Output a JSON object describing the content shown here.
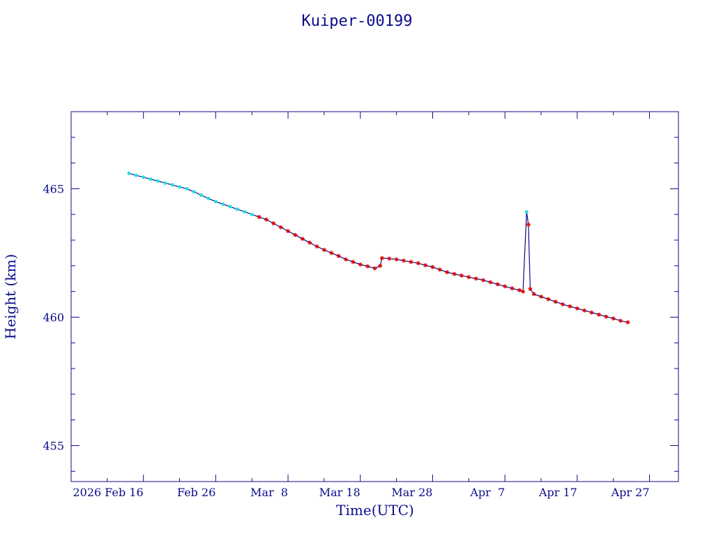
{
  "chart_data": {
    "type": "line",
    "title": "Kuiper-00199",
    "xlabel": "Time(UTC)",
    "ylabel": "Height (km)",
    "x_unit": "date (UTC)",
    "xlim": [
      "2026-02-06",
      "2026-05-01"
    ],
    "ylim": [
      453.6,
      468.0
    ],
    "x_tick_labels": [
      {
        "date": "2026-02-16",
        "label": "2026 Feb 16"
      },
      {
        "date": "2026-02-26",
        "label": "Feb 26"
      },
      {
        "date": "2026-03-08",
        "label": "Mar  8"
      },
      {
        "date": "2026-03-18",
        "label": "Mar 18"
      },
      {
        "date": "2026-03-28",
        "label": "Mar 28"
      },
      {
        "date": "2026-04-07",
        "label": "Apr  7"
      },
      {
        "date": "2026-04-17",
        "label": "Apr 17"
      },
      {
        "date": "2026-04-27",
        "label": "Apr 27"
      }
    ],
    "y_ticks": [
      455,
      460,
      465
    ],
    "grid": false,
    "legend": "none",
    "colors": {
      "axis": "#0b0b8a",
      "line": "#0b0b8a",
      "marker": "#dd0000",
      "highlight": "#22dddd"
    },
    "series": [
      {
        "marker": "red-star",
        "points": [
          {
            "t": "2026-02-14",
            "y": 465.6
          },
          {
            "t": "2026-02-15",
            "y": 465.52
          },
          {
            "t": "2026-02-16",
            "y": 465.45
          },
          {
            "t": "2026-02-17",
            "y": 465.37
          },
          {
            "t": "2026-02-18",
            "y": 465.3
          },
          {
            "t": "2026-02-19",
            "y": 465.22
          },
          {
            "t": "2026-02-20",
            "y": 465.15
          },
          {
            "t": "2026-02-21",
            "y": 465.07
          },
          {
            "t": "2026-02-22",
            "y": 465.0
          },
          {
            "t": "2026-02-23",
            "y": 464.88
          },
          {
            "t": "2026-02-24",
            "y": 464.75
          },
          {
            "t": "2026-02-25",
            "y": 464.62
          },
          {
            "t": "2026-02-26",
            "y": 464.5
          },
          {
            "t": "2026-02-27",
            "y": 464.4
          },
          {
            "t": "2026-02-28",
            "y": 464.3
          },
          {
            "t": "2026-03-01",
            "y": 464.2
          },
          {
            "t": "2026-03-02",
            "y": 464.1
          },
          {
            "t": "2026-03-03",
            "y": 464.0
          },
          {
            "t": "2026-03-04",
            "y": 463.9
          },
          {
            "t": "2026-03-05",
            "y": 463.8
          },
          {
            "t": "2026-03-06",
            "y": 463.65
          },
          {
            "t": "2026-03-07",
            "y": 463.5
          },
          {
            "t": "2026-03-08",
            "y": 463.35
          },
          {
            "t": "2026-03-09",
            "y": 463.2
          },
          {
            "t": "2026-03-10",
            "y": 463.05
          },
          {
            "t": "2026-03-11",
            "y": 462.9
          },
          {
            "t": "2026-03-12",
            "y": 462.75
          },
          {
            "t": "2026-03-13",
            "y": 462.62
          },
          {
            "t": "2026-03-14",
            "y": 462.5
          },
          {
            "t": "2026-03-15",
            "y": 462.38
          },
          {
            "t": "2026-03-16",
            "y": 462.25
          },
          {
            "t": "2026-03-17",
            "y": 462.15
          },
          {
            "t": "2026-03-18",
            "y": 462.05
          },
          {
            "t": "2026-03-19",
            "y": 461.98
          },
          {
            "t": "2026-03-20",
            "y": 461.9
          },
          {
            "t": "2026-03-20T18:00",
            "y": 462.0
          },
          {
            "t": "2026-03-21",
            "y": 462.3
          },
          {
            "t": "2026-03-22",
            "y": 462.28
          },
          {
            "t": "2026-03-23",
            "y": 462.25
          },
          {
            "t": "2026-03-24",
            "y": 462.2
          },
          {
            "t": "2026-03-25",
            "y": 462.15
          },
          {
            "t": "2026-03-26",
            "y": 462.1
          },
          {
            "t": "2026-03-27",
            "y": 462.02
          },
          {
            "t": "2026-03-28",
            "y": 461.95
          },
          {
            "t": "2026-03-29",
            "y": 461.85
          },
          {
            "t": "2026-03-30",
            "y": 461.75
          },
          {
            "t": "2026-03-31",
            "y": 461.68
          },
          {
            "t": "2026-04-01",
            "y": 461.62
          },
          {
            "t": "2026-04-02",
            "y": 461.56
          },
          {
            "t": "2026-04-03",
            "y": 461.5
          },
          {
            "t": "2026-04-04",
            "y": 461.44
          },
          {
            "t": "2026-04-05",
            "y": 461.36
          },
          {
            "t": "2026-04-06",
            "y": 461.28
          },
          {
            "t": "2026-04-07",
            "y": 461.2
          },
          {
            "t": "2026-04-08",
            "y": 461.12
          },
          {
            "t": "2026-04-09",
            "y": 461.05
          },
          {
            "t": "2026-04-09T12:00",
            "y": 461.0
          },
          {
            "t": "2026-04-10",
            "y": 464.1
          },
          {
            "t": "2026-04-10T06:00",
            "y": 463.6
          },
          {
            "t": "2026-04-10T12:00",
            "y": 461.1
          },
          {
            "t": "2026-04-11",
            "y": 460.9
          },
          {
            "t": "2026-04-12",
            "y": 460.8
          },
          {
            "t": "2026-04-13",
            "y": 460.7
          },
          {
            "t": "2026-04-14",
            "y": 460.6
          },
          {
            "t": "2026-04-15",
            "y": 460.5
          },
          {
            "t": "2026-04-16",
            "y": 460.42
          },
          {
            "t": "2026-04-17",
            "y": 460.34
          },
          {
            "t": "2026-04-18",
            "y": 460.26
          },
          {
            "t": "2026-04-19",
            "y": 460.18
          },
          {
            "t": "2026-04-20",
            "y": 460.1
          },
          {
            "t": "2026-04-21",
            "y": 460.02
          },
          {
            "t": "2026-04-22",
            "y": 459.95
          },
          {
            "t": "2026-04-23",
            "y": 459.86
          },
          {
            "t": "2026-04-24",
            "y": 459.8
          }
        ]
      }
    ]
  }
}
